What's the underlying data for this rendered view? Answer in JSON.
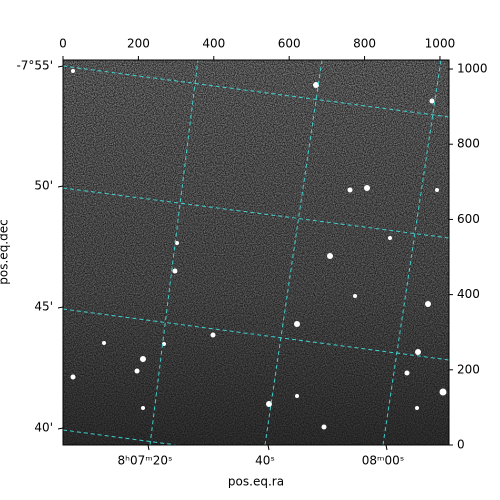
{
  "chart_data": {
    "type": "image",
    "xlabel": "pos.eq.ra",
    "ylabel": "pos.eq.dec",
    "xlim": [
      0,
      1024
    ],
    "ylim": [
      0,
      1024
    ],
    "xticks": [
      0,
      200,
      400,
      600,
      800,
      1000
    ],
    "yticks": [
      0,
      200,
      400,
      600,
      800,
      1000
    ],
    "ra_ticks": [
      "8ʰ07ᵐ20ˢ",
      "40ˢ",
      "08ᵐ00ˢ"
    ],
    "dec_ticks": [
      "-7°55'",
      "50'",
      "45'",
      "40'"
    ]
  }
}
